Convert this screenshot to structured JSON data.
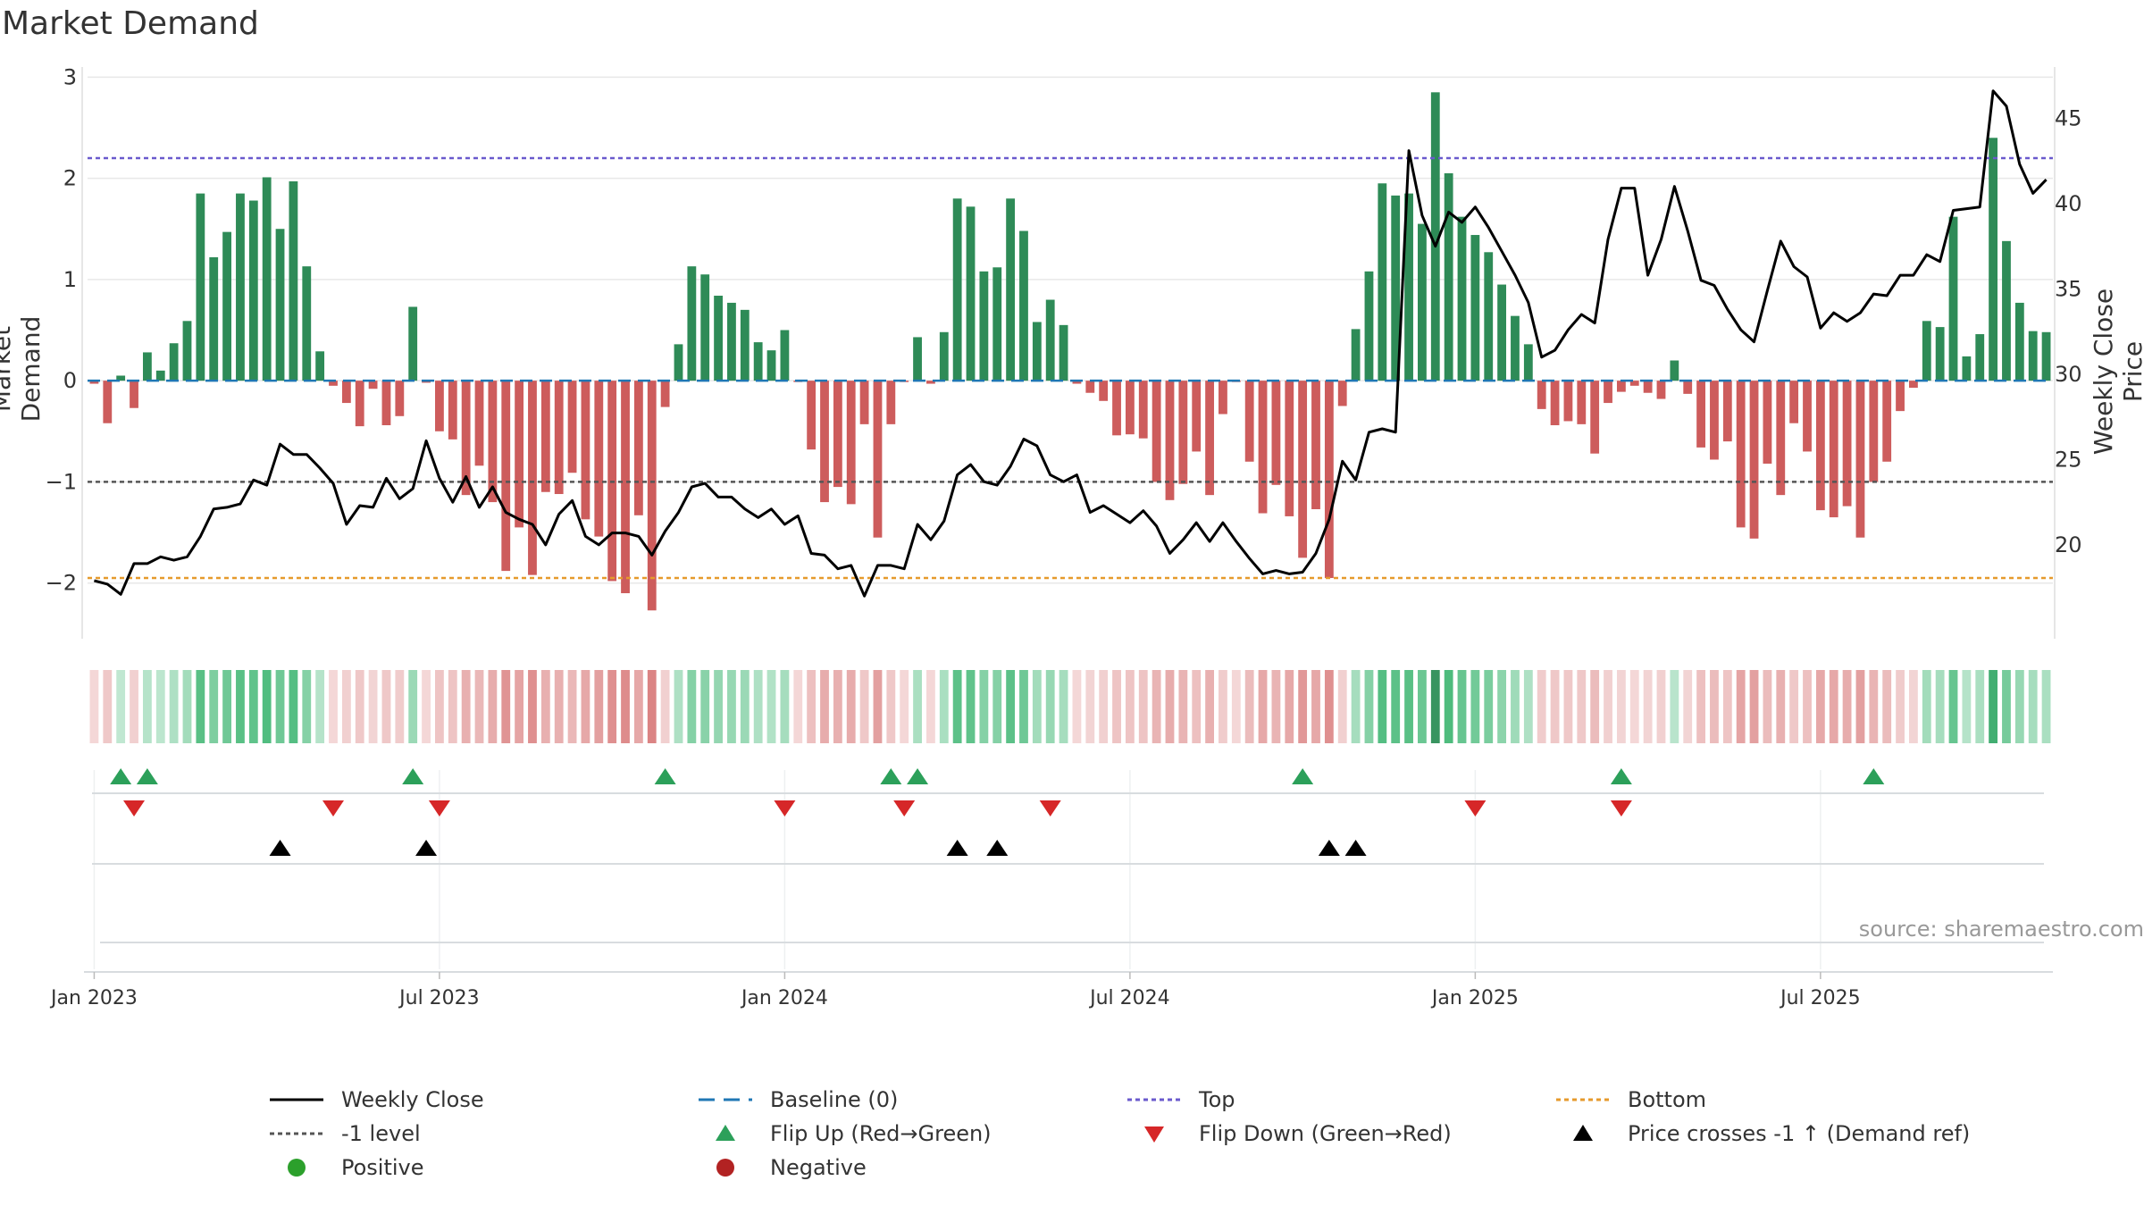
{
  "title": "Market Demand",
  "source_text": "source: sharemaestro.com",
  "chart_data": {
    "type": "bar+line",
    "title": "Market Demand",
    "ylabel": "Market Demand",
    "y2label": "Weekly Close Price",
    "ylim": [
      -2.55,
      3.1
    ],
    "y2lim": [
      14.5,
      48
    ],
    "yticks": [
      -2,
      -1,
      0,
      1,
      2,
      3
    ],
    "y2ticks": [
      20,
      25,
      30,
      35,
      40,
      45
    ],
    "xticks": [
      {
        "label": "Jan 2023",
        "week": 0.5
      },
      {
        "label": "Jul 2023",
        "week": 26.5
      },
      {
        "label": "Jan 2024",
        "week": 52.5
      },
      {
        "label": "Jul 2024",
        "week": 78.5
      },
      {
        "label": "Jan 2025",
        "week": 104.5
      },
      {
        "label": "Jul 2025",
        "week": 130.5
      }
    ],
    "levels": {
      "baseline": 0,
      "top": 2.2,
      "minus_one": -1,
      "bottom": -1.95
    },
    "demand": [
      -0.03,
      -0.42,
      0.05,
      -0.27,
      0.28,
      0.1,
      0.37,
      0.59,
      1.85,
      1.22,
      1.47,
      1.85,
      1.78,
      2.01,
      1.5,
      1.97,
      1.13,
      0.29,
      -0.05,
      -0.22,
      -0.45,
      -0.08,
      -0.44,
      -0.35,
      0.73,
      -0.02,
      -0.5,
      -0.58,
      -1.13,
      -0.84,
      -1.2,
      -1.88,
      -1.45,
      -1.92,
      -1.1,
      -1.12,
      -0.91,
      -1.37,
      -1.54,
      -1.98,
      -2.1,
      -1.33,
      -2.27,
      -0.26,
      0.36,
      1.13,
      1.05,
      0.84,
      0.77,
      0.7,
      0.38,
      0.3,
      0.5,
      -0.01,
      -0.68,
      -1.2,
      -1.05,
      -1.22,
      -0.43,
      -1.55,
      -0.43,
      -0.01,
      0.43,
      -0.03,
      0.48,
      1.8,
      1.72,
      1.08,
      1.12,
      1.8,
      1.48,
      0.58,
      0.8,
      0.55,
      -0.03,
      -0.12,
      -0.2,
      -0.54,
      -0.53,
      -0.57,
      -1.0,
      -1.18,
      -1.02,
      -0.7,
      -1.13,
      -0.33,
      -0.01,
      -0.8,
      -1.31,
      -1.03,
      -1.34,
      -1.75,
      -1.27,
      -1.95,
      -0.25,
      0.51,
      1.08,
      1.95,
      1.83,
      1.85,
      1.55,
      2.85,
      2.05,
      1.62,
      1.44,
      1.27,
      0.95,
      0.64,
      0.36,
      -0.28,
      -0.44,
      -0.4,
      -0.43,
      -0.72,
      -0.22,
      -0.11,
      -0.05,
      -0.12,
      -0.18,
      0.2,
      -0.13,
      -0.66,
      -0.78,
      -0.6,
      -1.45,
      -1.56,
      -0.82,
      -1.13,
      -0.42,
      -0.7,
      -1.28,
      -1.35,
      -1.24,
      -1.55,
      -1.0,
      -0.8,
      -0.3,
      -0.07,
      0.59,
      0.53,
      1.62,
      0.24,
      0.46,
      2.4,
      1.38,
      0.77,
      0.49,
      0.48
    ],
    "weekly_close": [
      17.9,
      17.7,
      17.1,
      18.9,
      18.9,
      19.3,
      19.1,
      19.3,
      20.5,
      22.1,
      22.2,
      22.4,
      23.8,
      23.5,
      25.9,
      25.3,
      25.3,
      24.5,
      23.6,
      21.2,
      22.3,
      22.2,
      23.9,
      22.7,
      23.3,
      26.1,
      23.9,
      22.5,
      24.0,
      22.2,
      23.4,
      21.9,
      21.5,
      21.2,
      20.0,
      21.8,
      22.6,
      20.5,
      20.0,
      20.7,
      20.7,
      20.5,
      19.4,
      20.8,
      21.9,
      23.4,
      23.6,
      22.8,
      22.8,
      22.1,
      21.6,
      22.1,
      21.2,
      21.7,
      19.5,
      19.4,
      18.6,
      18.8,
      17.0,
      18.8,
      18.8,
      18.6,
      21.2,
      20.3,
      21.4,
      24.1,
      24.7,
      23.7,
      23.5,
      24.6,
      26.2,
      25.8,
      24.1,
      23.7,
      24.1,
      21.9,
      22.3,
      21.8,
      21.3,
      22.0,
      21.1,
      19.5,
      20.3,
      21.3,
      20.2,
      21.3,
      20.2,
      19.2,
      18.3,
      18.5,
      18.3,
      18.4,
      19.5,
      21.5,
      24.9,
      23.8,
      26.6,
      26.8,
      26.6,
      43.1,
      39.3,
      37.5,
      39.5,
      38.9,
      39.8,
      38.6,
      37.2,
      35.8,
      34.2,
      31.0,
      31.4,
      32.6,
      33.5,
      33.0,
      37.9,
      40.9,
      40.9,
      35.8,
      37.9,
      41.0,
      38.4,
      35.5,
      35.2,
      33.8,
      32.6,
      31.9,
      34.9,
      37.8,
      36.3,
      35.7,
      32.7,
      33.6,
      33.1,
      33.6,
      34.7,
      34.6,
      35.8,
      35.8,
      37.0,
      36.6,
      39.6,
      39.7,
      39.8,
      46.6,
      45.7,
      42.3,
      40.6,
      41.4
    ],
    "flip_up_weeks": [
      2,
      4,
      24,
      43,
      60,
      62,
      91,
      115,
      134
    ],
    "flip_down_weeks": [
      3,
      18,
      26,
      52,
      61,
      72,
      104,
      115
    ],
    "price_cross_weeks": [
      14,
      25,
      65,
      68,
      93,
      95
    ]
  },
  "legend": [
    {
      "label": "Weekly Close",
      "symbol": "line-solid",
      "color": "#000000"
    },
    {
      "label": "Baseline (0)",
      "symbol": "line-dash",
      "color": "#1f77b4"
    },
    {
      "label": "Top",
      "symbol": "line-dot",
      "color": "#6a5acd"
    },
    {
      "label": "Bottom",
      "symbol": "line-dot",
      "color": "#e69a2c"
    },
    {
      "label": "-1 level",
      "symbol": "line-dot",
      "color": "#555555"
    },
    {
      "label": "Flip Up (Red→Green)",
      "symbol": "triangle-up",
      "color": "#2ca05a"
    },
    {
      "label": "Flip Down (Green→Red)",
      "symbol": "triangle-down",
      "color": "#d62728"
    },
    {
      "label": "Price crosses -1 ↑ (Demand ref)",
      "symbol": "triangle-up",
      "color": "#000000"
    },
    {
      "label": "Positive",
      "symbol": "circle",
      "color": "#2ca02c"
    },
    {
      "label": "Negative",
      "symbol": "circle",
      "color": "#b22222"
    }
  ],
  "colors": {
    "positive_bar": "#2e8b57",
    "negative_bar": "#cd5c5c",
    "price_line": "#000000"
  }
}
